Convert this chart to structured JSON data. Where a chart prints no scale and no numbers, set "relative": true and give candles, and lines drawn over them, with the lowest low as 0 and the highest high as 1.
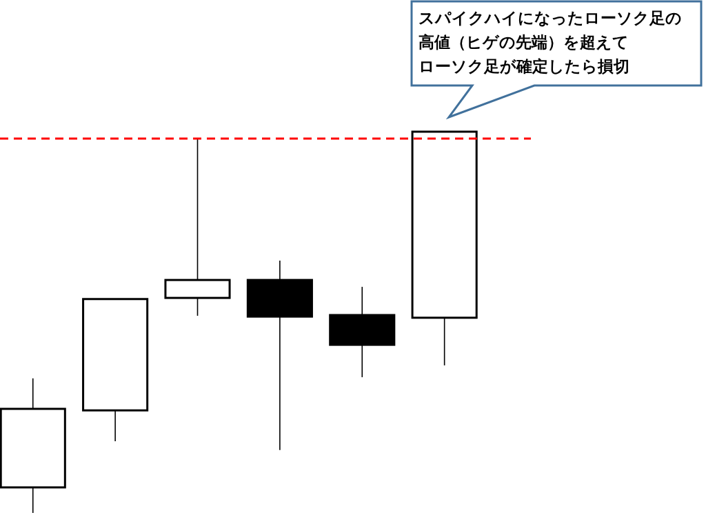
{
  "chart_data": {
    "type": "candlestick",
    "relative": true,
    "categories": [
      null,
      null,
      null,
      null,
      null,
      null
    ],
    "ohlc": [
      [
        0.067,
        0.353,
        0,
        0.273
      ],
      [
        0.269,
        0.561,
        0.188,
        0.561
      ],
      [
        0.564,
        0.982,
        0.517,
        0.611
      ],
      [
        0.611,
        0.662,
        0.165,
        0.515
      ],
      [
        0.519,
        0.593,
        0.356,
        0.441
      ],
      [
        0.512,
        1,
        0.387,
        1
      ]
    ],
    "color": "#000000",
    "colors": [
      "#ffffff",
      "#ffffff",
      "#ffffff",
      "#000000",
      "#000000",
      "#ffffff"
    ],
    "ref_lines": [
      {
        "axis": "y",
        "value": 0.982,
        "color": "#ff0000",
        "line_style": "dashed"
      }
    ],
    "annotations": [
      "スパイクハイになったローソク足の",
      "高値（ヒゲの先端）を超えて",
      "ローソク足が確定したら損切"
    ]
  }
}
